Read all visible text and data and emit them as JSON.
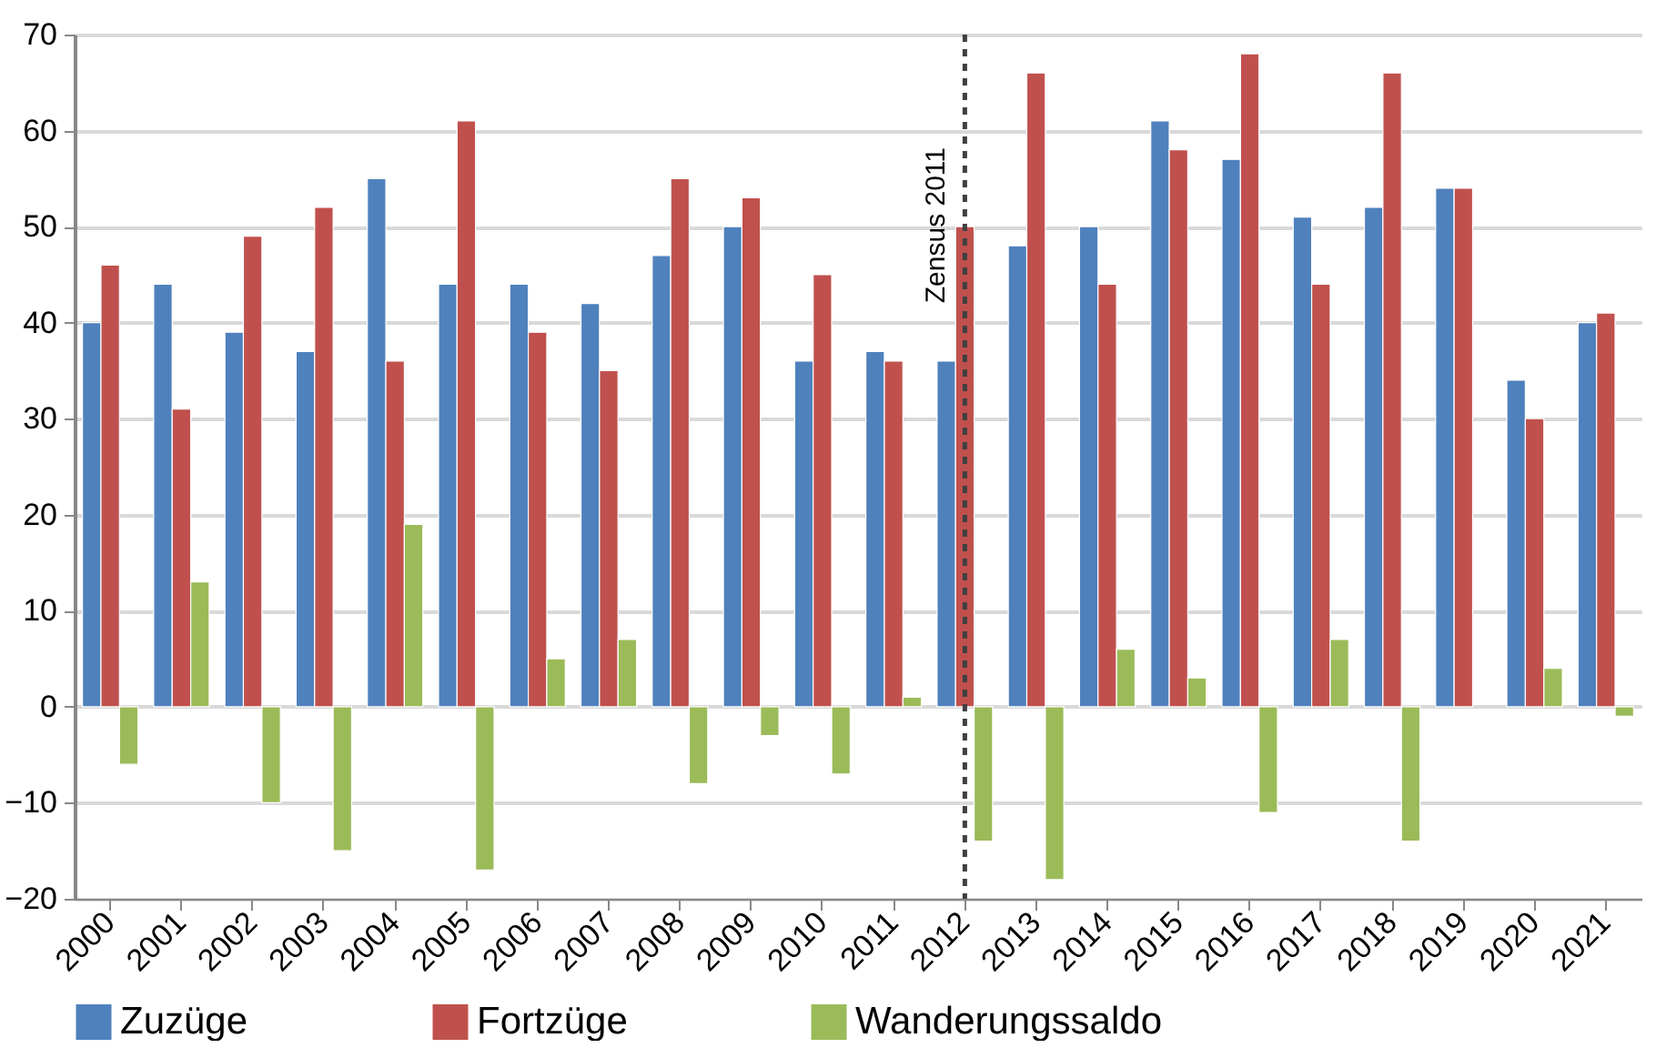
{
  "chart_data": {
    "type": "bar",
    "categories": [
      "2000",
      "2001",
      "2002",
      "2003",
      "2004",
      "2005",
      "2006",
      "2007",
      "2008",
      "2009",
      "2010",
      "2011",
      "2012",
      "2013",
      "2014",
      "2015",
      "2016",
      "2017",
      "2018",
      "2019",
      "2020",
      "2021"
    ],
    "series": [
      {
        "name": "Zuzüge",
        "color": "#4f81bd",
        "values": [
          40,
          44,
          39,
          37,
          55,
          44,
          44,
          42,
          47,
          50,
          36,
          37,
          36,
          48,
          50,
          61,
          57,
          51,
          52,
          54,
          34,
          40
        ]
      },
      {
        "name": "Fortzüge",
        "color": "#c0504d",
        "values": [
          46,
          31,
          49,
          52,
          36,
          61,
          39,
          35,
          55,
          53,
          45,
          36,
          50,
          66,
          44,
          58,
          68,
          44,
          66,
          54,
          30,
          41
        ]
      },
      {
        "name": "Wanderungssaldo",
        "color": "#9bbb59",
        "values": [
          -6,
          13,
          -10,
          -15,
          19,
          -17,
          5,
          7,
          -8,
          -3,
          -7,
          1,
          -14,
          -18,
          6,
          3,
          -11,
          7,
          -14,
          null,
          4,
          -1
        ]
      }
    ],
    "ylim": [
      -20,
      70
    ],
    "yticks": [
      -20,
      -10,
      0,
      10,
      20,
      30,
      40,
      50,
      60,
      70
    ],
    "grid": "y",
    "legend": "bottom",
    "ref_lines": [
      {
        "axis": "x",
        "value": "2012",
        "label": "Zensus 2011",
        "color": "#404040",
        "line_style": "dashed"
      }
    ]
  }
}
